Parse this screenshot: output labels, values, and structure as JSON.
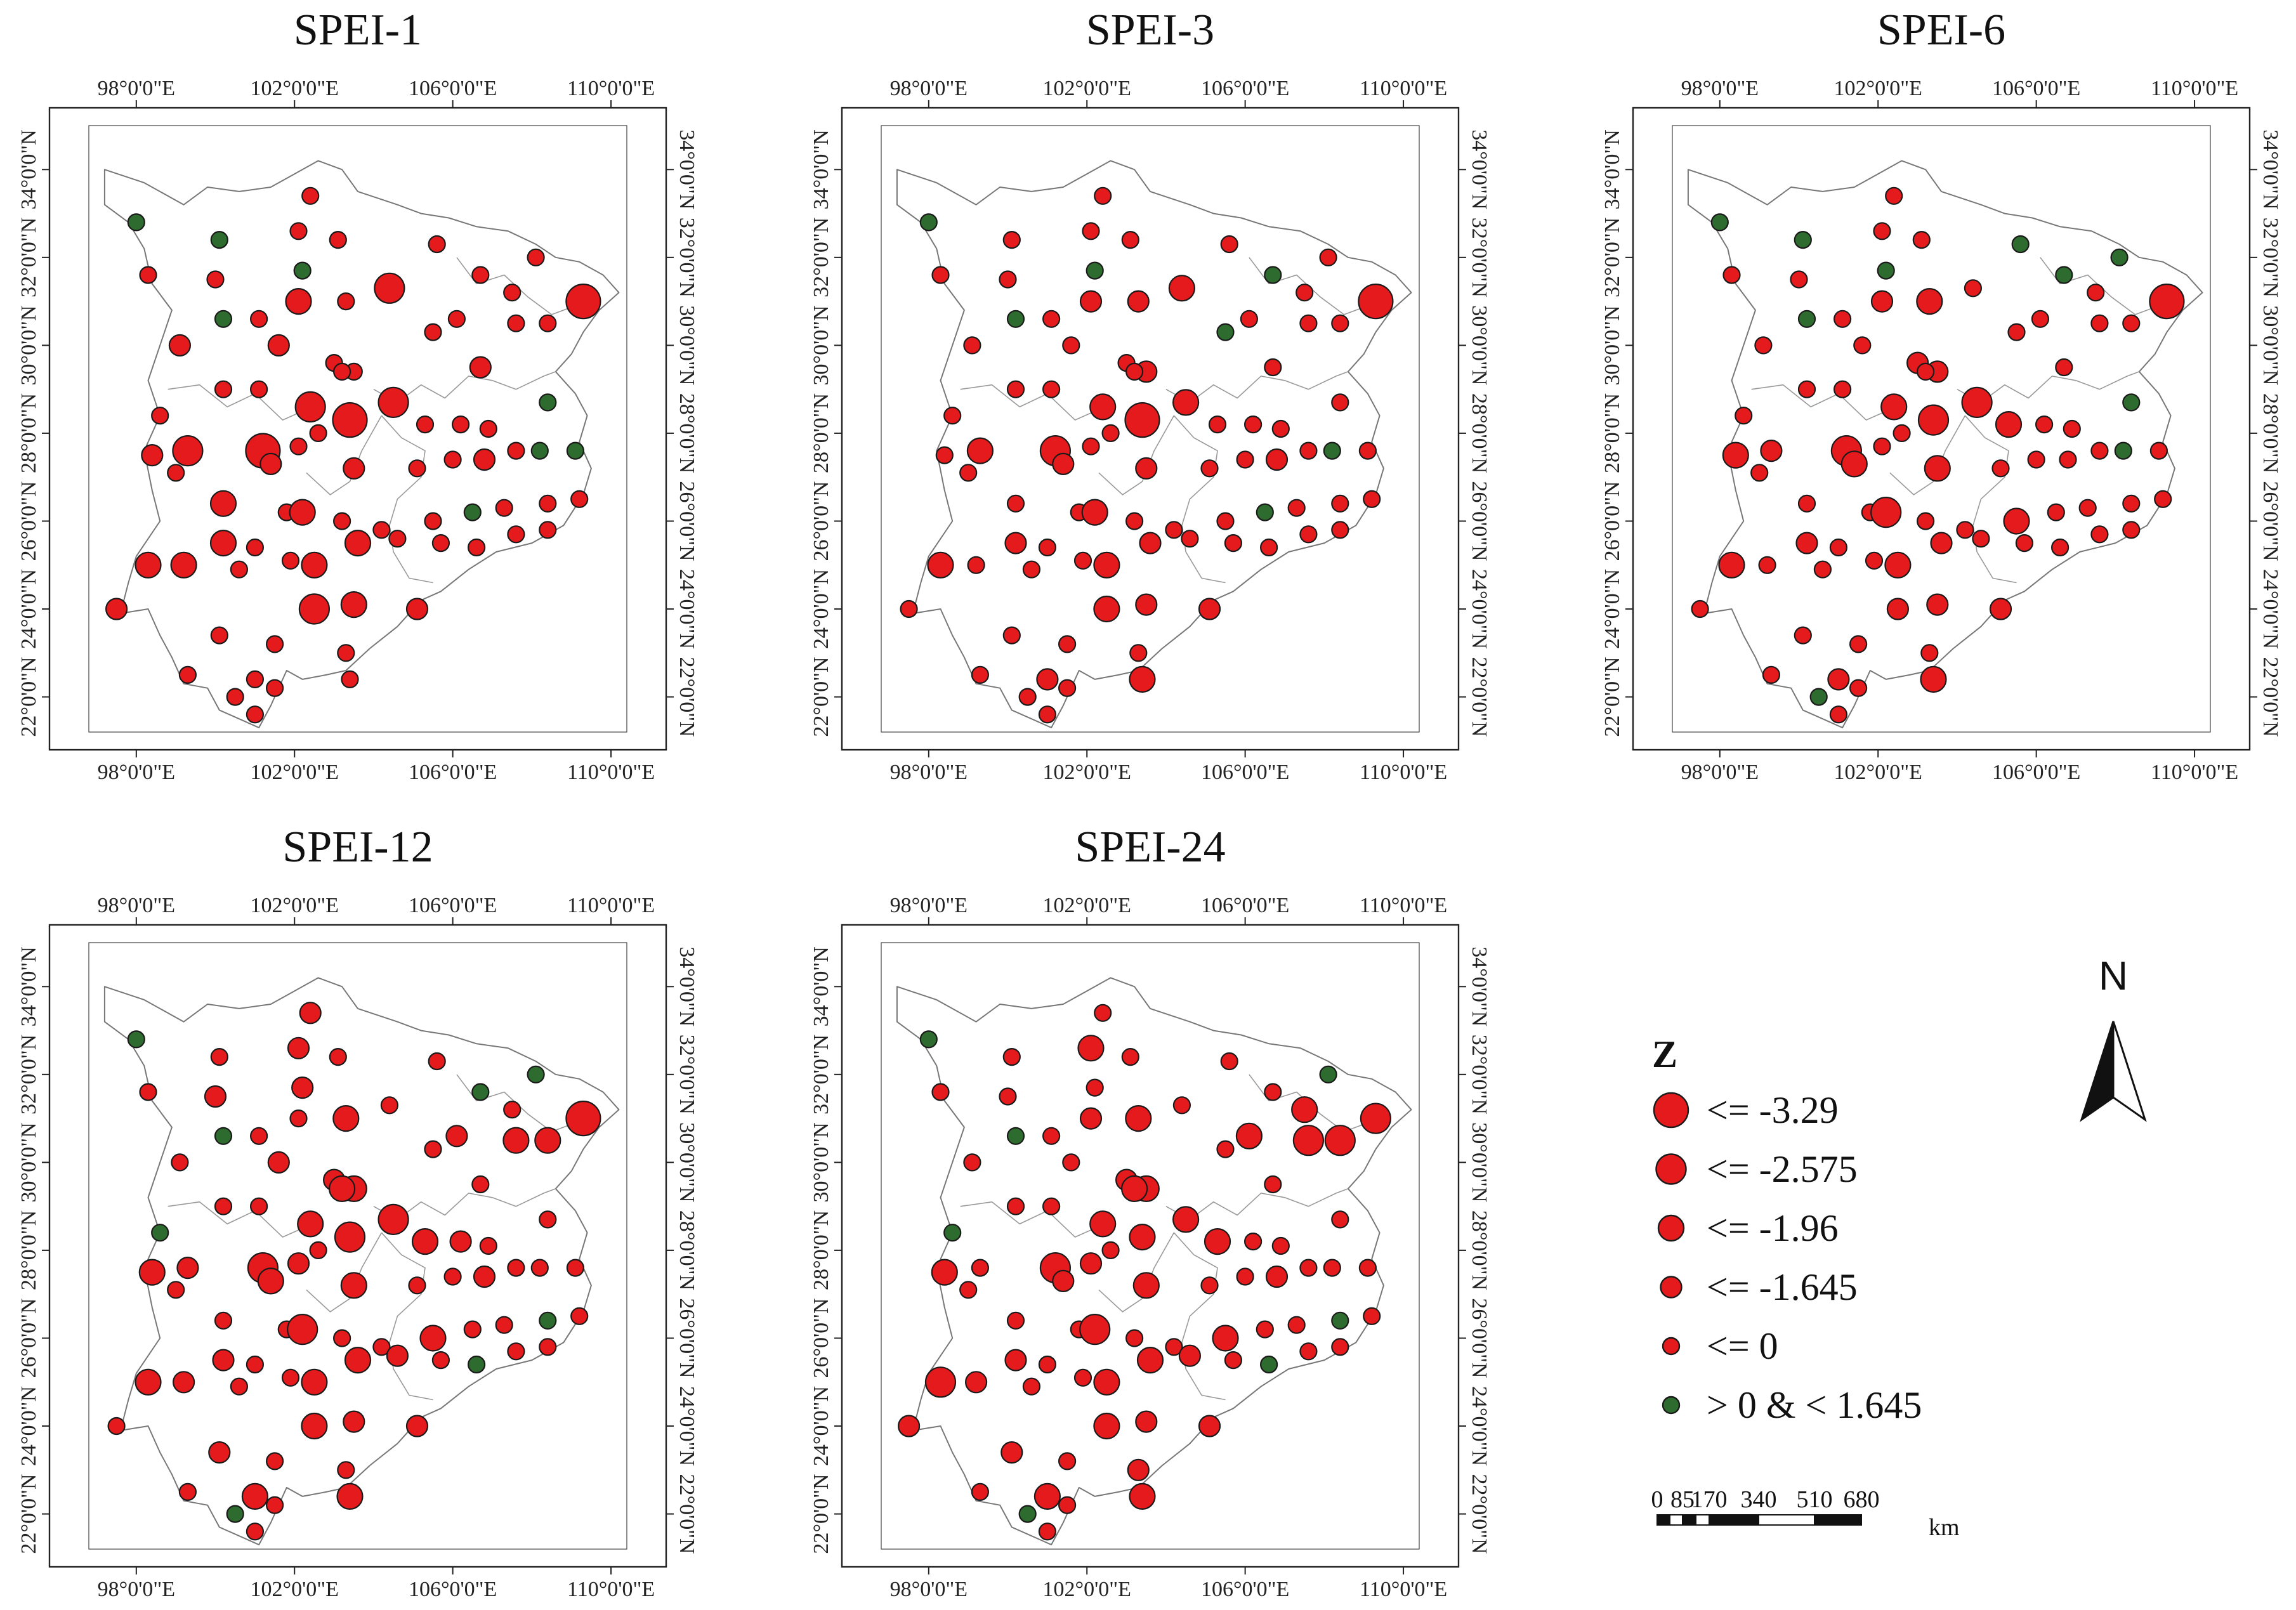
{
  "panels": [
    {
      "title": "SPEI-1"
    },
    {
      "title": "SPEI-3"
    },
    {
      "title": "SPEI-6"
    },
    {
      "title": "SPEI-12"
    },
    {
      "title": "SPEI-24"
    }
  ],
  "axes": {
    "lon_labels": [
      "98°0'0\"E",
      "102°0'0\"E",
      "106°0'0\"E",
      "110°0'0\"E"
    ],
    "lat_labels": [
      "22°0'0\"N",
      "24°0'0\"N",
      "26°0'0\"N",
      "28°0'0\"N",
      "30°0'0\"N",
      "32°0'0\"N",
      "34°0'0\"N"
    ]
  },
  "legend": {
    "title": "Z",
    "classes": [
      {
        "label": "<= -3.29",
        "color": "#e41a1c",
        "size": 6
      },
      {
        "label": "<= -2.575",
        "color": "#e41a1c",
        "size": 5
      },
      {
        "label": "<= -1.96",
        "color": "#e41a1c",
        "size": 4
      },
      {
        "label": "<= -1.645",
        "color": "#e41a1c",
        "size": 3
      },
      {
        "label": "<= 0",
        "color": "#e41a1c",
        "size": 2
      },
      {
        "label": "> 0 & < 1.645",
        "color": "#2e6b2e",
        "size": 2
      }
    ]
  },
  "north_arrow": {
    "label": "N"
  },
  "scale_bar": {
    "ticks": [
      "0",
      "85",
      "170",
      "340",
      "510",
      "680"
    ],
    "unit": "km"
  },
  "colors": {
    "negative": "#e41a1c",
    "positive": "#2e6b2e",
    "outline": "#777777"
  },
  "stations": [
    {
      "lon": 98.0,
      "lat": 32.8,
      "c": [
        1,
        1,
        1,
        1,
        1
      ]
    },
    {
      "lon": 100.1,
      "lat": 32.4,
      "c": [
        1,
        2,
        1,
        2,
        2
      ]
    },
    {
      "lon": 102.4,
      "lat": 33.4,
      "c": [
        2,
        2,
        2,
        3,
        2
      ]
    },
    {
      "lon": 102.1,
      "lat": 32.6,
      "c": [
        2,
        2,
        2,
        3,
        4
      ]
    },
    {
      "lon": 103.1,
      "lat": 32.4,
      "c": [
        2,
        2,
        2,
        2,
        2
      ]
    },
    {
      "lon": 98.3,
      "lat": 31.6,
      "c": [
        2,
        2,
        2,
        2,
        2
      ]
    },
    {
      "lon": 100.0,
      "lat": 31.5,
      "c": [
        2,
        2,
        2,
        3,
        2
      ]
    },
    {
      "lon": 102.2,
      "lat": 31.7,
      "c": [
        1,
        1,
        1,
        3,
        2
      ]
    },
    {
      "lon": 102.1,
      "lat": 31.0,
      "c": [
        4,
        3,
        3,
        2,
        3
      ]
    },
    {
      "lon": 103.3,
      "lat": 31.0,
      "c": [
        2,
        3,
        4,
        4,
        4
      ]
    },
    {
      "lon": 104.4,
      "lat": 31.3,
      "c": [
        5,
        4,
        2,
        2,
        2
      ]
    },
    {
      "lon": 105.6,
      "lat": 32.3,
      "c": [
        2,
        2,
        1,
        2,
        2
      ]
    },
    {
      "lon": 106.7,
      "lat": 31.6,
      "c": [
        2,
        1,
        1,
        1,
        2
      ]
    },
    {
      "lon": 107.5,
      "lat": 31.2,
      "c": [
        2,
        2,
        2,
        2,
        4
      ]
    },
    {
      "lon": 108.1,
      "lat": 32.0,
      "c": [
        2,
        2,
        1,
        1,
        1
      ]
    },
    {
      "lon": 109.3,
      "lat": 31.0,
      "c": [
        6,
        6,
        6,
        6,
        5
      ]
    },
    {
      "lon": 100.2,
      "lat": 30.6,
      "c": [
        1,
        1,
        1,
        1,
        1
      ]
    },
    {
      "lon": 101.1,
      "lat": 30.6,
      "c": [
        2,
        2,
        2,
        2,
        2
      ]
    },
    {
      "lon": 101.6,
      "lat": 30.0,
      "c": [
        3,
        2,
        2,
        3,
        2
      ]
    },
    {
      "lon": 99.1,
      "lat": 30.0,
      "c": [
        3,
        2,
        2,
        2,
        2
      ]
    },
    {
      "lon": 103.0,
      "lat": 29.6,
      "c": [
        2,
        2,
        3,
        3,
        3
      ]
    },
    {
      "lon": 103.5,
      "lat": 29.4,
      "c": [
        2,
        3,
        3,
        4,
        4
      ]
    },
    {
      "lon": 103.2,
      "lat": 29.4,
      "c": [
        2,
        2,
        2,
        4,
        4
      ]
    },
    {
      "lon": 105.5,
      "lat": 30.3,
      "c": [
        2,
        1,
        2,
        2,
        2
      ]
    },
    {
      "lon": 106.1,
      "lat": 30.6,
      "c": [
        2,
        2,
        2,
        3,
        4
      ]
    },
    {
      "lon": 106.7,
      "lat": 29.5,
      "c": [
        3,
        2,
        2,
        2,
        2
      ]
    },
    {
      "lon": 107.6,
      "lat": 30.5,
      "c": [
        2,
        2,
        2,
        4,
        5
      ]
    },
    {
      "lon": 108.4,
      "lat": 30.5,
      "c": [
        2,
        2,
        2,
        4,
        5
      ]
    },
    {
      "lon": 100.2,
      "lat": 29.0,
      "c": [
        2,
        2,
        2,
        2,
        2
      ]
    },
    {
      "lon": 101.1,
      "lat": 29.0,
      "c": [
        2,
        2,
        2,
        2,
        2
      ]
    },
    {
      "lon": 102.4,
      "lat": 28.6,
      "c": [
        5,
        4,
        4,
        4,
        4
      ]
    },
    {
      "lon": 103.4,
      "lat": 28.3,
      "c": [
        6,
        6,
        5,
        5,
        4
      ]
    },
    {
      "lon": 104.5,
      "lat": 28.7,
      "c": [
        5,
        4,
        5,
        5,
        4
      ]
    },
    {
      "lon": 105.3,
      "lat": 28.2,
      "c": [
        2,
        2,
        4,
        4,
        4
      ]
    },
    {
      "lon": 106.2,
      "lat": 28.2,
      "c": [
        2,
        2,
        2,
        3,
        2
      ]
    },
    {
      "lon": 106.9,
      "lat": 28.1,
      "c": [
        2,
        2,
        2,
        2,
        2
      ]
    },
    {
      "lon": 108.4,
      "lat": 28.7,
      "c": [
        1,
        2,
        1,
        2,
        2
      ]
    },
    {
      "lon": 98.6,
      "lat": 28.4,
      "c": [
        2,
        2,
        2,
        1,
        1
      ]
    },
    {
      "lon": 98.4,
      "lat": 27.5,
      "c": [
        3,
        2,
        4,
        4,
        4
      ]
    },
    {
      "lon": 99.3,
      "lat": 27.6,
      "c": [
        5,
        4,
        3,
        3,
        2
      ]
    },
    {
      "lon": 101.2,
      "lat": 27.6,
      "c": [
        6,
        5,
        5,
        5,
        5
      ]
    },
    {
      "lon": 101.4,
      "lat": 27.3,
      "c": [
        3,
        3,
        4,
        4,
        3
      ]
    },
    {
      "lon": 102.1,
      "lat": 27.7,
      "c": [
        2,
        2,
        2,
        3,
        3
      ]
    },
    {
      "lon": 102.6,
      "lat": 28.0,
      "c": [
        2,
        2,
        2,
        2,
        2
      ]
    },
    {
      "lon": 99.0,
      "lat": 27.1,
      "c": [
        2,
        2,
        2,
        2,
        2
      ]
    },
    {
      "lon": 103.5,
      "lat": 27.2,
      "c": [
        3,
        3,
        4,
        4,
        4
      ]
    },
    {
      "lon": 105.1,
      "lat": 27.2,
      "c": [
        2,
        2,
        2,
        2,
        2
      ]
    },
    {
      "lon": 106.0,
      "lat": 27.4,
      "c": [
        2,
        2,
        2,
        2,
        2
      ]
    },
    {
      "lon": 106.8,
      "lat": 27.4,
      "c": [
        3,
        3,
        2,
        3,
        3
      ]
    },
    {
      "lon": 107.6,
      "lat": 27.6,
      "c": [
        2,
        2,
        2,
        2,
        2
      ]
    },
    {
      "lon": 108.2,
      "lat": 27.6,
      "c": [
        1,
        1,
        1,
        2,
        2
      ]
    },
    {
      "lon": 109.1,
      "lat": 27.6,
      "c": [
        1,
        2,
        2,
        2,
        2
      ]
    },
    {
      "lon": 100.2,
      "lat": 26.4,
      "c": [
        4,
        2,
        2,
        2,
        2
      ]
    },
    {
      "lon": 101.8,
      "lat": 26.2,
      "c": [
        2,
        2,
        2,
        2,
        2
      ]
    },
    {
      "lon": 102.2,
      "lat": 26.2,
      "c": [
        4,
        4,
        5,
        5,
        5
      ]
    },
    {
      "lon": 103.2,
      "lat": 26.0,
      "c": [
        2,
        2,
        2,
        2,
        2
      ]
    },
    {
      "lon": 104.2,
      "lat": 25.8,
      "c": [
        2,
        2,
        2,
        2,
        2
      ]
    },
    {
      "lon": 105.5,
      "lat": 26.0,
      "c": [
        2,
        2,
        4,
        4,
        4
      ]
    },
    {
      "lon": 106.5,
      "lat": 26.2,
      "c": [
        1,
        1,
        2,
        2,
        2
      ]
    },
    {
      "lon": 107.3,
      "lat": 26.3,
      "c": [
        2,
        2,
        2,
        2,
        2
      ]
    },
    {
      "lon": 108.4,
      "lat": 26.4,
      "c": [
        2,
        2,
        2,
        1,
        1
      ]
    },
    {
      "lon": 109.2,
      "lat": 26.5,
      "c": [
        2,
        2,
        2,
        2,
        2
      ]
    },
    {
      "lon": 100.2,
      "lat": 25.5,
      "c": [
        4,
        3,
        3,
        3,
        3
      ]
    },
    {
      "lon": 101.0,
      "lat": 25.4,
      "c": [
        2,
        2,
        2,
        2,
        2
      ]
    },
    {
      "lon": 101.9,
      "lat": 25.1,
      "c": [
        2,
        2,
        2,
        2,
        2
      ]
    },
    {
      "lon": 102.5,
      "lat": 25.0,
      "c": [
        4,
        4,
        4,
        4,
        4
      ]
    },
    {
      "lon": 103.6,
      "lat": 25.5,
      "c": [
        4,
        3,
        3,
        4,
        4
      ]
    },
    {
      "lon": 104.6,
      "lat": 25.6,
      "c": [
        2,
        2,
        2,
        3,
        3
      ]
    },
    {
      "lon": 105.7,
      "lat": 25.5,
      "c": [
        2,
        2,
        2,
        2,
        2
      ]
    },
    {
      "lon": 106.6,
      "lat": 25.4,
      "c": [
        2,
        2,
        2,
        1,
        1
      ]
    },
    {
      "lon": 107.6,
      "lat": 25.7,
      "c": [
        2,
        2,
        2,
        2,
        2
      ]
    },
    {
      "lon": 108.4,
      "lat": 25.8,
      "c": [
        2,
        2,
        2,
        2,
        2
      ]
    },
    {
      "lon": 98.3,
      "lat": 25.0,
      "c": [
        4,
        4,
        4,
        4,
        5
      ]
    },
    {
      "lon": 99.2,
      "lat": 25.0,
      "c": [
        4,
        2,
        2,
        3,
        3
      ]
    },
    {
      "lon": 100.6,
      "lat": 24.9,
      "c": [
        2,
        2,
        2,
        2,
        2
      ]
    },
    {
      "lon": 102.5,
      "lat": 24.0,
      "c": [
        5,
        4,
        3,
        4,
        4
      ]
    },
    {
      "lon": 103.5,
      "lat": 24.1,
      "c": [
        4,
        3,
        3,
        3,
        3
      ]
    },
    {
      "lon": 105.1,
      "lat": 24.0,
      "c": [
        3,
        3,
        3,
        3,
        3
      ]
    },
    {
      "lon": 97.5,
      "lat": 24.0,
      "c": [
        3,
        2,
        2,
        2,
        3
      ]
    },
    {
      "lon": 100.1,
      "lat": 23.4,
      "c": [
        2,
        2,
        2,
        3,
        3
      ]
    },
    {
      "lon": 101.5,
      "lat": 23.2,
      "c": [
        2,
        2,
        2,
        2,
        2
      ]
    },
    {
      "lon": 103.3,
      "lat": 23.0,
      "c": [
        2,
        2,
        2,
        2,
        3
      ]
    },
    {
      "lon": 103.4,
      "lat": 22.4,
      "c": [
        2,
        4,
        4,
        4,
        4
      ]
    },
    {
      "lon": 99.3,
      "lat": 22.5,
      "c": [
        2,
        2,
        2,
        2,
        2
      ]
    },
    {
      "lon": 100.5,
      "lat": 22.0,
      "c": [
        2,
        2,
        1,
        1,
        1
      ]
    },
    {
      "lon": 101.0,
      "lat": 22.4,
      "c": [
        2,
        3,
        3,
        4,
        4
      ]
    },
    {
      "lon": 101.5,
      "lat": 22.2,
      "c": [
        2,
        2,
        2,
        2,
        2
      ]
    },
    {
      "lon": 101.0,
      "lat": 21.6,
      "c": [
        2,
        2,
        2,
        2,
        2
      ]
    }
  ]
}
